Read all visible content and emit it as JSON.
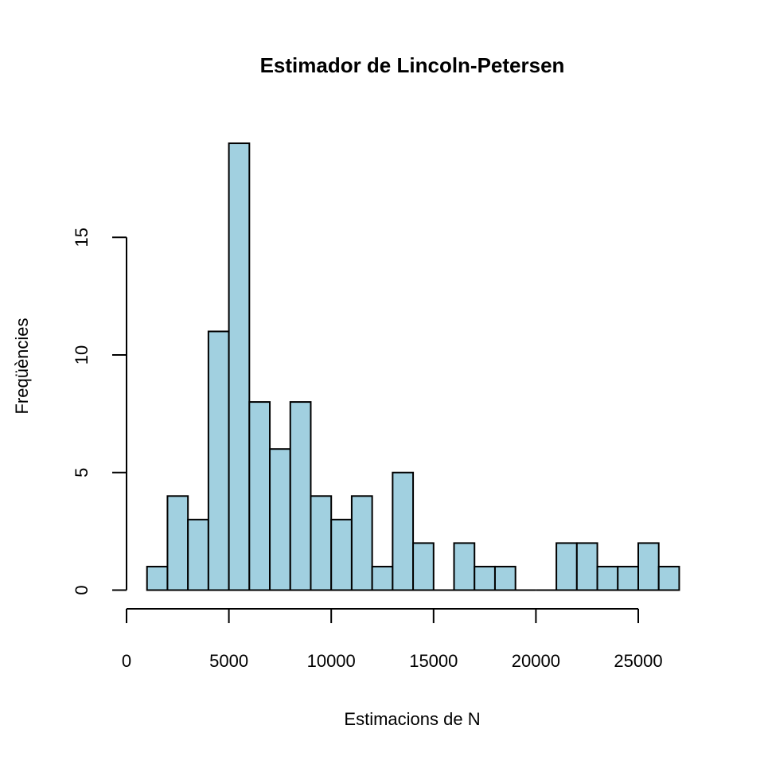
{
  "chart_data": {
    "type": "bar",
    "subtype": "histogram",
    "title": "Estimador de Lincoln-Petersen",
    "xlabel": "Estimacions de N",
    "ylabel": "Freqüències",
    "bin_width": 1000,
    "bin_starts": [
      1000,
      2000,
      3000,
      4000,
      5000,
      6000,
      7000,
      8000,
      9000,
      10000,
      11000,
      12000,
      13000,
      14000,
      15000,
      16000,
      17000,
      18000,
      19000,
      20000,
      21000,
      22000,
      23000,
      24000,
      25000,
      26000
    ],
    "values": [
      1,
      4,
      3,
      11,
      19,
      8,
      6,
      8,
      4,
      3,
      4,
      1,
      5,
      2,
      0,
      2,
      1,
      1,
      0,
      0,
      2,
      2,
      1,
      1,
      2,
      1
    ],
    "xlim": [
      0,
      27000
    ],
    "ylim": [
      0,
      19
    ],
    "x_ticks": [
      0,
      5000,
      10000,
      15000,
      20000,
      25000
    ],
    "y_ticks": [
      0,
      5,
      10,
      15
    ],
    "bar_color": "#a1d0e0",
    "border_color": "#000000",
    "grid": false,
    "legend": "none"
  }
}
